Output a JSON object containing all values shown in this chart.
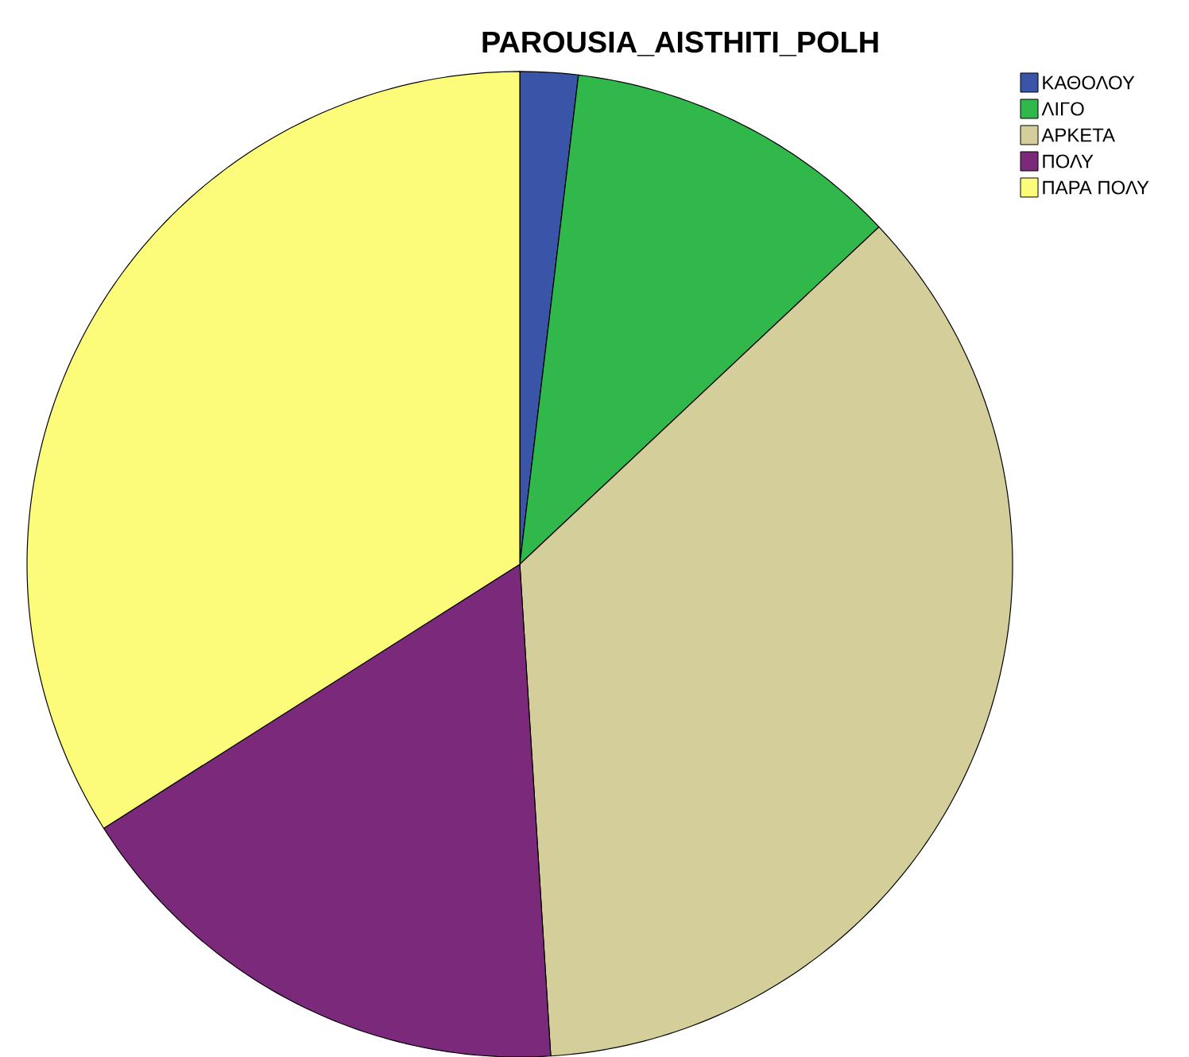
{
  "chart_data": {
    "type": "pie",
    "title": "PAROUSIA_AISTHITI_POLH",
    "categories": [
      "ΚΑΘΟΛΟΥ",
      "ΛΙΓΟ",
      "ΑΡΚΕΤΑ",
      "ΠΟΛΥ",
      "ΠΑΡΑ ΠΟΛΥ"
    ],
    "values": [
      1.9,
      11.1,
      36.0,
      17.0,
      34.0
    ],
    "colors": [
      "#3a54a8",
      "#30b84a",
      "#d4cf9a",
      "#7b2a7b",
      "#fdfc7a"
    ],
    "legend": "top right"
  }
}
